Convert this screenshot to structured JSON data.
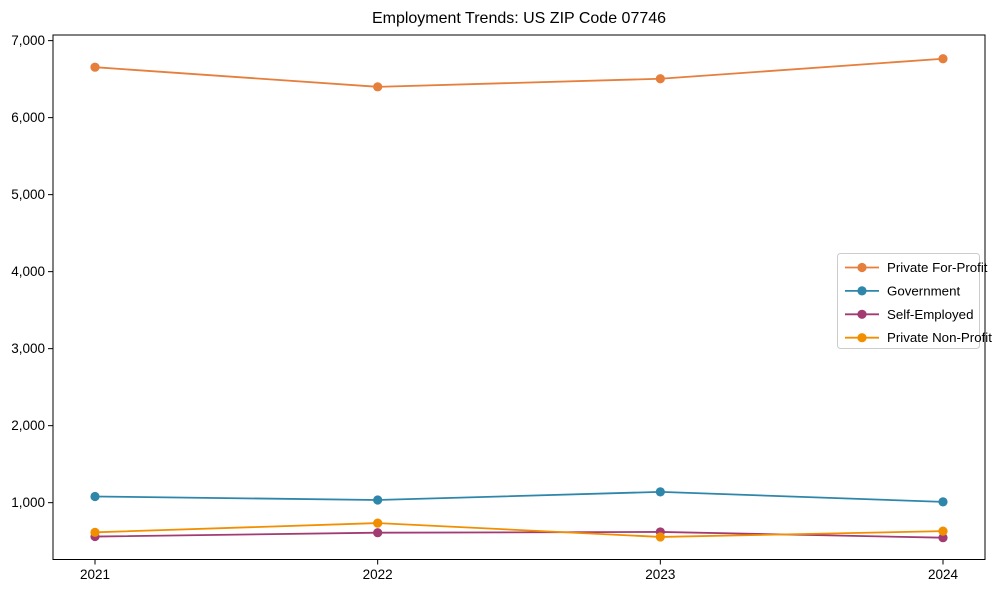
{
  "title": "Employment Trends: US ZIP Code 07746",
  "chart_data": {
    "type": "line",
    "title": "Employment Trends: US ZIP Code 07746",
    "x": [
      2021,
      2022,
      2023,
      2024
    ],
    "xtick_labels": [
      "2021",
      "2022",
      "2023",
      "2024"
    ],
    "yticks": [
      1000,
      2000,
      3000,
      4000,
      5000,
      6000,
      7000
    ],
    "ytick_labels": [
      "1,000",
      "2,000",
      "3,000",
      "4,000",
      "5,000",
      "6,000",
      "7,000"
    ],
    "ylim": [
      262,
      7073
    ],
    "grid": false,
    "legend_position": "center right",
    "marker": "circle",
    "series": [
      {
        "name": "Private For-Profit",
        "color": "#E67E3C",
        "values": [
          6655,
          6400,
          6505,
          6765
        ]
      },
      {
        "name": "Government",
        "color": "#2E86AB",
        "values": [
          1080,
          1035,
          1140,
          1010
        ]
      },
      {
        "name": "Self-Employed",
        "color": "#A23B72",
        "values": [
          560,
          610,
          620,
          545
        ]
      },
      {
        "name": "Private Non-Profit",
        "color": "#F18F01",
        "values": [
          615,
          735,
          555,
          630
        ]
      }
    ]
  }
}
